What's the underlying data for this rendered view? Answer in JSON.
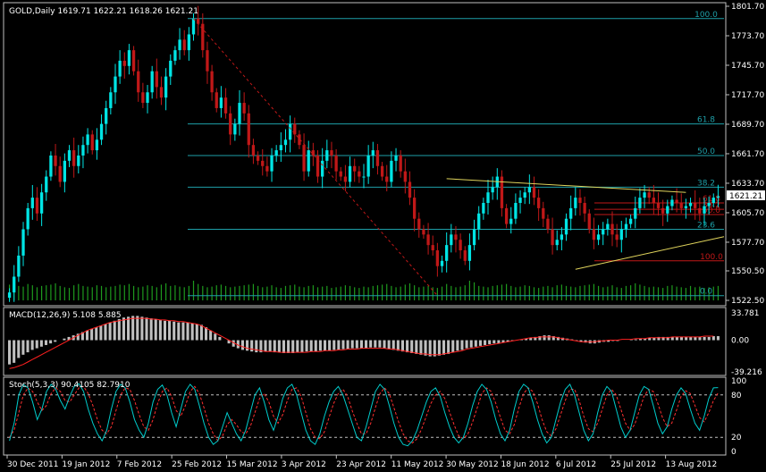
{
  "colors": {
    "background": "#000000",
    "frame": "#c0c0c0",
    "bull": "#00e5e5",
    "bear": "#c01818",
    "volume": "#1e9a1e",
    "fib_line": "#1e9fa8",
    "fib_label": "#1e9fa8",
    "fib_red": "#c01818",
    "trendline": "#e0d45c",
    "diag": "#c01818",
    "macd_hist": "#c0c0c0",
    "macd_signal": "#ff2020",
    "stoch_main": "#00cccc",
    "stoch_signal": "#ff3030",
    "text": "#ffffff",
    "price_tag_bg": "#ffffff",
    "price_tag_text": "#000000"
  },
  "chart_data": [
    {
      "type": "candlestick",
      "title": "GOLD,Daily  1619.71 1622.21 1618.26 1621.21",
      "symbol": "GOLD",
      "timeframe": "Daily",
      "ohlc_last": {
        "open": 1619.71,
        "high": 1622.21,
        "low": 1618.26,
        "close": 1621.21
      },
      "current_price": "1621.21",
      "x_tick_labels": [
        "30 Dec 2011",
        "19 Jan 2012",
        "7 Feb 2012",
        "25 Feb 2012",
        "15 Mar 2012",
        "3 Apr 2012",
        "23 Apr 2012",
        "11 May 2012",
        "30 May 2012",
        "18 Jun 2012",
        "6 Jul 2012",
        "25 Jul 2012",
        "13 Aug 2012"
      ],
      "y_tick_labels": [
        "1801.70",
        "1773.70",
        "1745.70",
        "1717.70",
        "1689.70",
        "1661.70",
        "1633.70",
        "1605.70",
        "1577.70",
        "1550.50",
        "1522.50"
      ],
      "ylim": [
        1522.5,
        1801.7
      ],
      "closes": [
        1530,
        1545,
        1565,
        1590,
        1610,
        1620,
        1605,
        1625,
        1640,
        1660,
        1650,
        1635,
        1655,
        1665,
        1650,
        1660,
        1670,
        1680,
        1665,
        1675,
        1690,
        1705,
        1720,
        1735,
        1750,
        1745,
        1760,
        1740,
        1720,
        1710,
        1720,
        1740,
        1725,
        1715,
        1735,
        1750,
        1760,
        1770,
        1760,
        1775,
        1790,
        1785,
        1760,
        1740,
        1720,
        1705,
        1715,
        1700,
        1680,
        1690,
        1710,
        1700,
        1670,
        1660,
        1655,
        1650,
        1645,
        1660,
        1665,
        1670,
        1675,
        1690,
        1680,
        1670,
        1645,
        1665,
        1660,
        1640,
        1655,
        1665,
        1660,
        1645,
        1640,
        1635,
        1650,
        1645,
        1640,
        1640,
        1660,
        1665,
        1650,
        1640,
        1635,
        1655,
        1660,
        1645,
        1635,
        1620,
        1600,
        1590,
        1585,
        1575,
        1570,
        1555,
        1560,
        1575,
        1585,
        1580,
        1570,
        1560,
        1575,
        1590,
        1605,
        1615,
        1625,
        1630,
        1640,
        1610,
        1595,
        1600,
        1615,
        1620,
        1625,
        1630,
        1620,
        1610,
        1600,
        1590,
        1575,
        1580,
        1585,
        1600,
        1610,
        1620,
        1615,
        1605,
        1590,
        1580,
        1585,
        1590,
        1595,
        1585,
        1580,
        1590,
        1595,
        1600,
        1610,
        1620,
        1625,
        1620,
        1615,
        1610,
        1605,
        1612,
        1618,
        1615,
        1610,
        1612,
        1615,
        1610,
        1605,
        1612,
        1615,
        1620,
        1621.21
      ],
      "fibonacci_upper": {
        "levels": [
          {
            "label": "100.0",
            "price": 1790
          },
          {
            "label": "61.8",
            "price": 1690
          },
          {
            "label": "50.0",
            "price": 1660
          },
          {
            "label": "38.2",
            "price": 1630
          },
          {
            "label": "23.6",
            "price": 1590
          },
          {
            "label": "0.0",
            "price": 1527
          }
        ]
      },
      "fibonacci_lower": {
        "levels": [
          {
            "label": "100.0",
            "price": 1560
          },
          {
            "label": "61.8",
            "price": 1615
          },
          {
            "label": "50.0",
            "price": 1604
          },
          {
            "label": "38.2",
            "price": 1609
          }
        ]
      },
      "triangle": {
        "upper": [
          {
            "x": "30 May 2012",
            "y": 1638
          },
          {
            "x": "13 Aug 2012",
            "y": 1625
          }
        ],
        "lower": [
          {
            "x": "25 Jun 2012",
            "y": 1552
          },
          {
            "x": "20 Aug 2012",
            "y": 1583
          }
        ]
      },
      "volume": [
        48,
        40,
        44,
        42,
        50,
        46,
        40,
        44,
        46,
        48,
        52,
        44,
        40,
        38,
        46,
        50,
        44,
        42,
        40,
        46,
        44,
        40,
        42,
        44,
        48,
        46,
        50,
        44,
        40,
        42,
        46,
        44,
        40,
        48,
        52,
        44,
        46,
        42,
        40,
        44,
        60,
        50,
        44,
        40,
        42,
        46,
        48,
        44,
        40,
        42,
        44,
        46,
        48,
        50,
        44,
        40,
        42,
        46,
        40,
        38,
        44,
        46,
        48,
        42,
        40,
        44,
        46,
        40,
        42,
        44,
        38,
        40,
        42,
        46,
        44,
        40,
        38,
        42,
        40,
        44,
        46,
        48,
        50,
        44,
        40,
        42,
        48,
        52,
        46,
        40,
        42,
        44,
        40,
        38,
        42,
        50,
        44,
        40,
        42,
        46,
        60,
        55,
        44,
        42,
        40,
        44,
        46,
        48,
        50,
        44,
        40,
        42,
        46,
        44,
        40,
        38,
        42,
        44,
        40,
        46,
        48,
        44,
        42,
        40,
        44,
        46,
        48,
        50,
        44,
        40,
        42,
        46,
        40,
        38,
        44,
        46,
        52,
        48,
        44,
        40,
        42,
        40,
        38,
        44,
        46,
        42,
        40,
        38,
        44,
        40,
        42,
        38,
        40,
        42,
        44
      ]
    },
    {
      "type": "bar",
      "title": "MACD(12,26,9) 5.108 5.885",
      "y_tick_labels": [
        "33.781",
        "0.00",
        "-39.216"
      ],
      "ylim": [
        -39.216,
        33.781
      ],
      "histogram": [
        -30,
        -28,
        -22,
        -18,
        -15,
        -12,
        -10,
        -8,
        -6,
        -4,
        -2,
        0,
        2,
        4,
        6,
        8,
        10,
        12,
        14,
        16,
        18,
        20,
        22,
        24,
        26,
        28,
        29,
        30,
        30,
        29,
        28,
        27,
        26,
        25,
        24,
        24,
        23,
        22,
        22,
        22,
        21,
        20,
        19,
        16,
        12,
        8,
        4,
        0,
        -4,
        -8,
        -10,
        -12,
        -13,
        -14,
        -15,
        -15,
        -14,
        -14,
        -15,
        -15,
        -16,
        -16,
        -16,
        -15,
        -15,
        -14,
        -14,
        -14,
        -13,
        -13,
        -13,
        -12,
        -12,
        -11,
        -11,
        -10,
        -10,
        -10,
        -10,
        -9,
        -9,
        -9,
        -10,
        -11,
        -12,
        -13,
        -14,
        -15,
        -16,
        -17,
        -18,
        -19,
        -20,
        -20,
        -19,
        -18,
        -17,
        -15,
        -13,
        -12,
        -10,
        -9,
        -8,
        -7,
        -6,
        -5,
        -4,
        -4,
        -3,
        -2,
        -1,
        0,
        1,
        2,
        3,
        4,
        5,
        6,
        6,
        5,
        4,
        3,
        2,
        1,
        -1,
        -2,
        -3,
        -4,
        -4,
        -3,
        -2,
        -2,
        -1,
        -1,
        0,
        0,
        1,
        1,
        2,
        2,
        3,
        3,
        4,
        4,
        4,
        4,
        4,
        4,
        4,
        4,
        4,
        4,
        4,
        4,
        5,
        5
      ],
      "signal": [
        -35,
        -34,
        -32,
        -30,
        -27,
        -24,
        -21,
        -18,
        -15,
        -12,
        -9,
        -6,
        -3,
        0,
        3,
        6,
        9,
        12,
        14,
        16,
        18,
        20,
        22,
        23,
        24,
        25,
        26,
        27,
        27,
        27,
        27,
        26,
        26,
        25,
        25,
        24,
        24,
        23,
        23,
        22,
        21,
        20,
        18,
        15,
        12,
        9,
        6,
        3,
        0,
        -3,
        -6,
        -8,
        -10,
        -11,
        -12,
        -13,
        -14,
        -14,
        -14,
        -15,
        -15,
        -15,
        -15,
        -15,
        -15,
        -15,
        -14,
        -14,
        -14,
        -13,
        -13,
        -13,
        -12,
        -12,
        -11,
        -11,
        -11,
        -10,
        -10,
        -10,
        -10,
        -10,
        -10,
        -11,
        -11,
        -12,
        -13,
        -14,
        -15,
        -16,
        -17,
        -17,
        -18,
        -18,
        -18,
        -17,
        -16,
        -15,
        -14,
        -13,
        -11,
        -10,
        -9,
        -8,
        -7,
        -6,
        -5,
        -4,
        -3,
        -2,
        -1,
        0,
        1,
        2,
        3,
        3,
        4,
        4,
        4,
        4,
        3,
        2,
        1,
        0,
        -1,
        -2,
        -2,
        -2,
        -2,
        -1,
        -1,
        0,
        0,
        0,
        1,
        1,
        1,
        2,
        2,
        2,
        3,
        3,
        3,
        3,
        3,
        4,
        4,
        4,
        4,
        4,
        4,
        4,
        5,
        5,
        5
      ]
    },
    {
      "type": "line",
      "title": "Stoch(5,3,3) 90.4105 82.7910",
      "y_tick_labels": [
        "100",
        "80",
        "20",
        "0"
      ],
      "ylim": [
        0,
        100
      ],
      "levels": [
        80,
        20
      ],
      "main": [
        15,
        40,
        80,
        95,
        90,
        70,
        45,
        60,
        85,
        95,
        88,
        72,
        60,
        78,
        92,
        96,
        85,
        60,
        40,
        25,
        15,
        30,
        60,
        85,
        95,
        90,
        70,
        45,
        30,
        20,
        40,
        70,
        88,
        94,
        80,
        55,
        35,
        60,
        85,
        95,
        88,
        65,
        40,
        20,
        10,
        15,
        35,
        55,
        40,
        25,
        15,
        30,
        55,
        80,
        90,
        70,
        45,
        30,
        50,
        75,
        90,
        95,
        80,
        55,
        30,
        15,
        10,
        25,
        50,
        70,
        85,
        92,
        80,
        60,
        40,
        20,
        15,
        35,
        60,
        85,
        95,
        88,
        65,
        40,
        20,
        10,
        8,
        15,
        30,
        50,
        70,
        85,
        90,
        78,
        55,
        35,
        20,
        12,
        20,
        40,
        65,
        85,
        95,
        88,
        70,
        45,
        25,
        15,
        30,
        60,
        85,
        95,
        90,
        70,
        45,
        25,
        12,
        20,
        45,
        70,
        88,
        95,
        80,
        55,
        30,
        15,
        25,
        55,
        80,
        92,
        85,
        60,
        35,
        20,
        30,
        55,
        80,
        92,
        88,
        65,
        40,
        25,
        35,
        60,
        80,
        90,
        82,
        60,
        40,
        30,
        50,
        75,
        90,
        90.41
      ],
      "signal": [
        20,
        30,
        55,
        80,
        90,
        85,
        70,
        58,
        65,
        82,
        90,
        85,
        72,
        70,
        80,
        90,
        92,
        82,
        65,
        45,
        30,
        25,
        35,
        58,
        80,
        90,
        88,
        72,
        52,
        35,
        30,
        45,
        68,
        85,
        90,
        78,
        58,
        50,
        65,
        85,
        92,
        82,
        62,
        40,
        25,
        15,
        22,
        38,
        45,
        38,
        28,
        25,
        35,
        55,
        75,
        82,
        70,
        50,
        40,
        52,
        72,
        88,
        90,
        78,
        55,
        32,
        20,
        18,
        28,
        48,
        68,
        82,
        88,
        78,
        58,
        40,
        25,
        25,
        40,
        62,
        82,
        90,
        82,
        62,
        42,
        25,
        15,
        12,
        18,
        32,
        50,
        68,
        80,
        85,
        75,
        56,
        38,
        22,
        18,
        25,
        42,
        62,
        82,
        90,
        85,
        68,
        48,
        30,
        25,
        38,
        62,
        82,
        90,
        85,
        68,
        45,
        28,
        22,
        32,
        52,
        72,
        88,
        88,
        72,
        50,
        32,
        28,
        40,
        60,
        80,
        88,
        80,
        60,
        40,
        30,
        38,
        58,
        78,
        88,
        85,
        68,
        48,
        35,
        40,
        58,
        78,
        86,
        82,
        65,
        48,
        42,
        55,
        72,
        82.79
      ]
    }
  ]
}
